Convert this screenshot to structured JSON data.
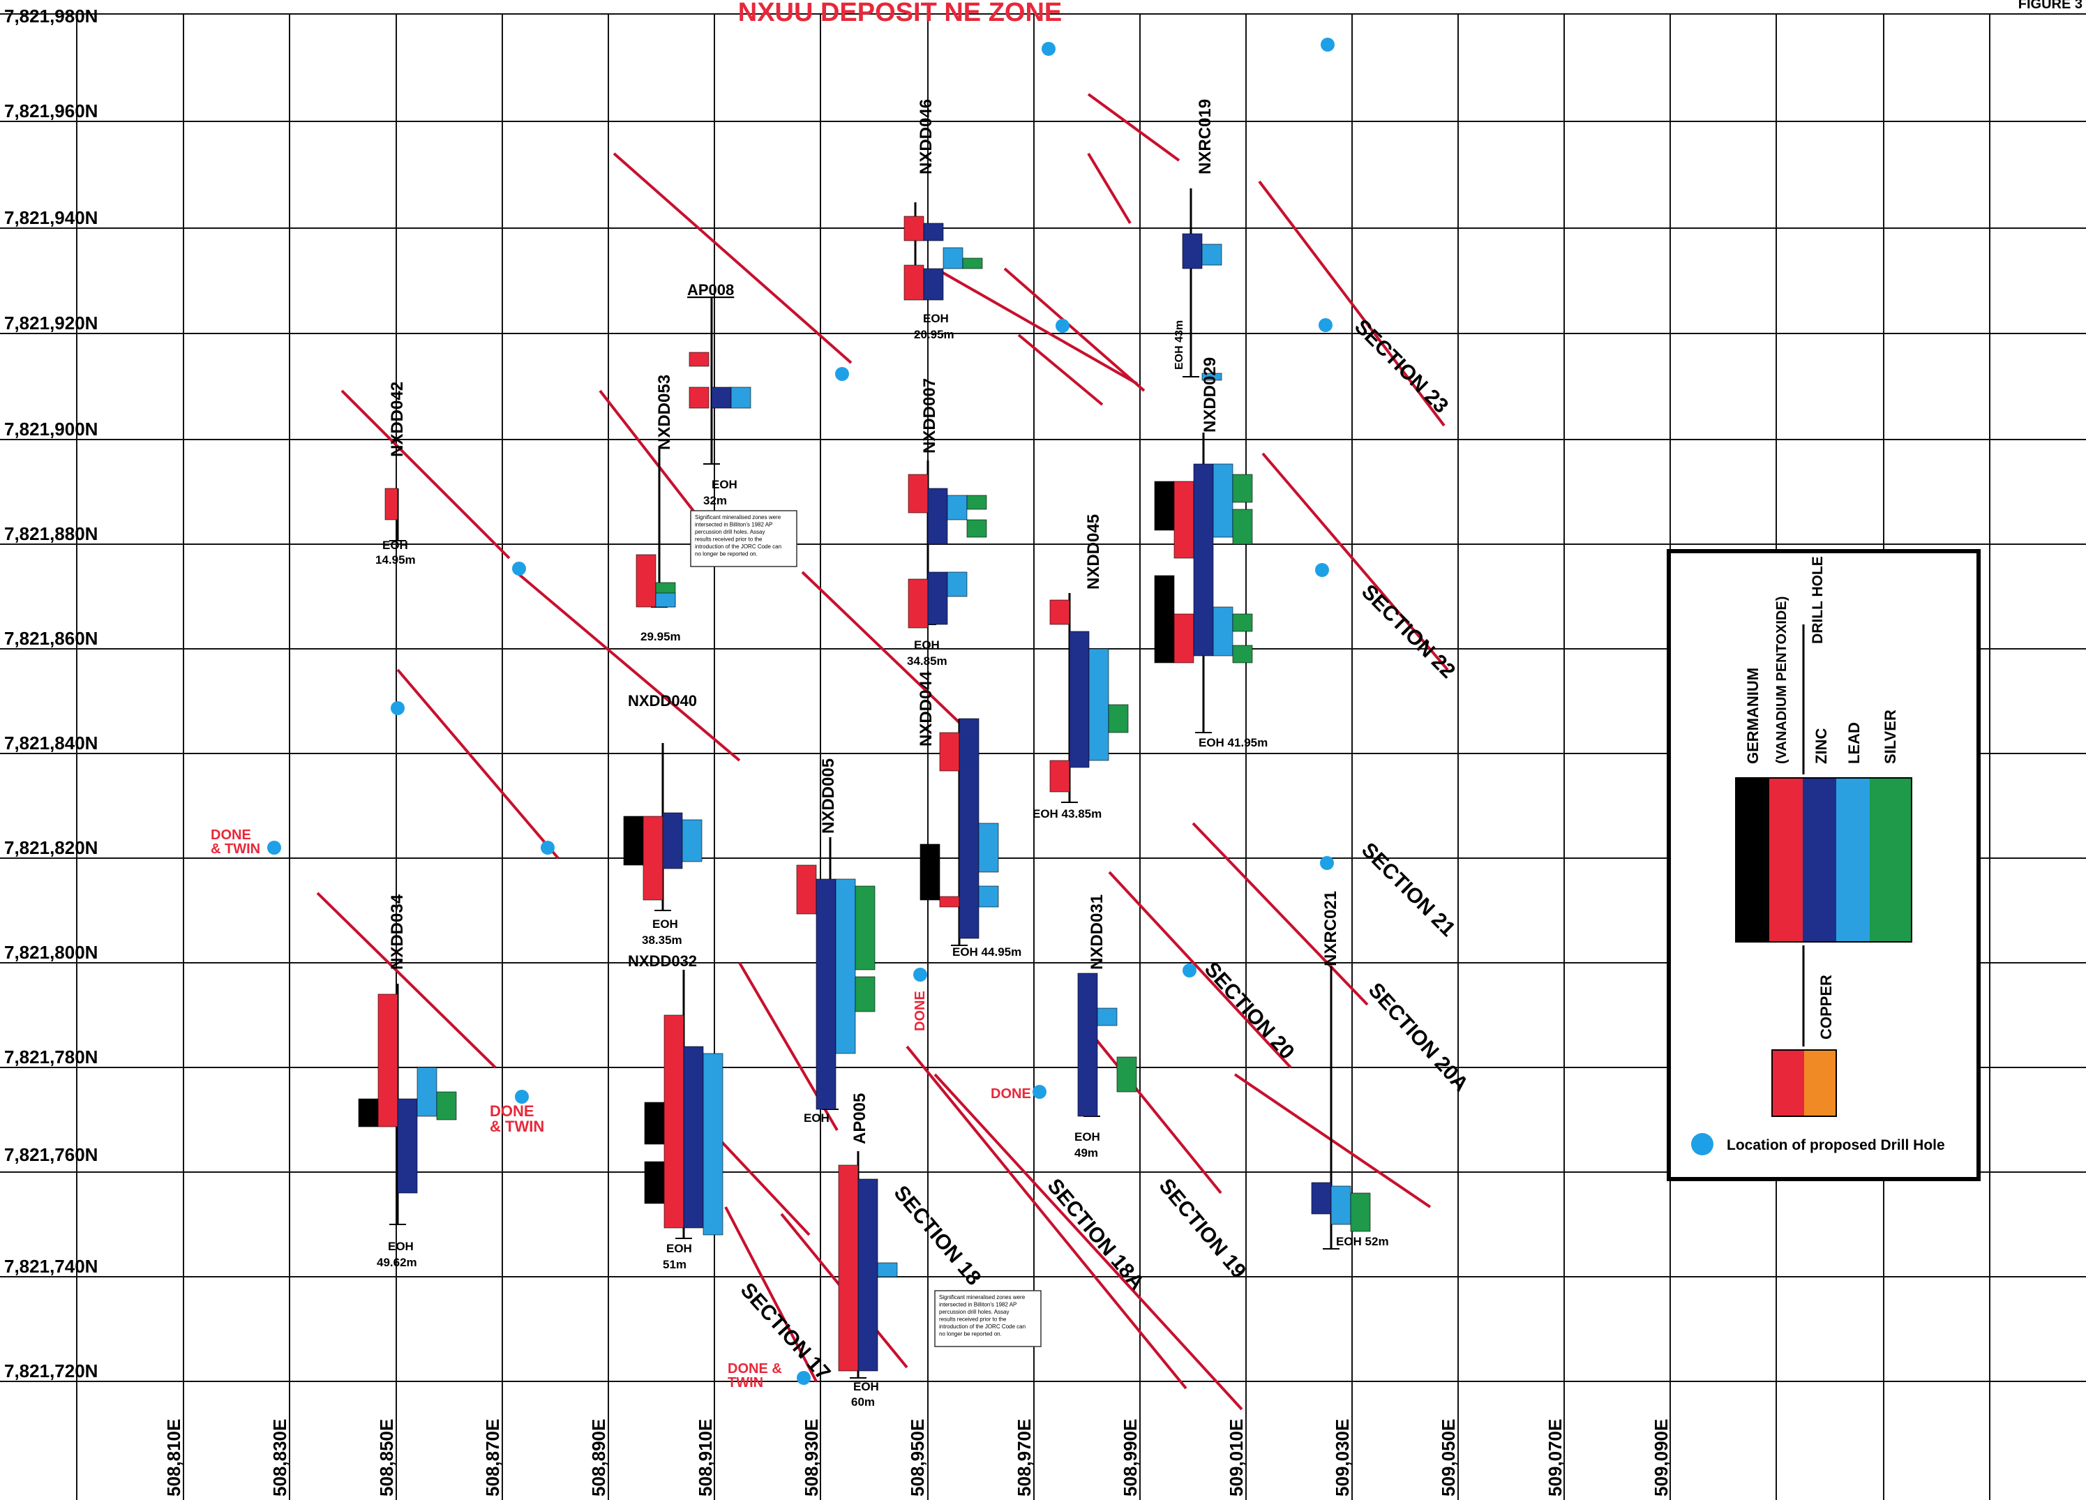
{
  "header": {
    "title": "NXUU DEPOSIT NE ZONE",
    "figure": "FIGURE 3"
  },
  "axes": {
    "northing": [
      "7,821,980N",
      "7,821,960N",
      "7,821,940N",
      "7,821,920N",
      "7,821,900N",
      "7,821,880N",
      "7,821,860N",
      "7,821,840N",
      "7,821,820N",
      "7,821,800N",
      "7,821,780N",
      "7,821,760N",
      "7,821,740N",
      "7,821,720N"
    ],
    "easting": [
      "508,810E",
      "508,830E",
      "508,850E",
      "508,870E",
      "508,890E",
      "508,910E",
      "508,930E",
      "508,950E",
      "508,970E",
      "508,990E",
      "509,010E",
      "509,030E",
      "509,050E",
      "509,070E",
      "509,090E"
    ]
  },
  "sections": [
    "SECTION 23",
    "SECTION 22",
    "SECTION 21",
    "SECTION 20",
    "SECTION 20A",
    "SECTION 19",
    "SECTION 18A",
    "SECTION 18",
    "SECTION 17"
  ],
  "holes": [
    {
      "name": "NXDD046",
      "eoh": "EOH",
      "depth": "20.95m"
    },
    {
      "name": "NXRC019",
      "eoh": "EOH 43m"
    },
    {
      "name": "AP008",
      "eoh": "EOH",
      "depth": "32m"
    },
    {
      "name": "NXDD042",
      "eoh": "EOH",
      "depth": "14.95m"
    },
    {
      "name": "NXDD053",
      "eoh": "",
      "depth": "29.95m"
    },
    {
      "name": "NXDD007",
      "eoh": "EOH",
      "depth": "34.85m"
    },
    {
      "name": "NXDD045",
      "eoh": "EOH 43.85m"
    },
    {
      "name": "NXDD029",
      "eoh": "EOH 41.95m"
    },
    {
      "name": "NXDD040",
      "eoh": "EOH",
      "depth": "38.35m"
    },
    {
      "name": "NXDD044",
      "eoh": "EOH 44.95m"
    },
    {
      "name": "NXDD005",
      "eoh": "EOH"
    },
    {
      "name": "NXDD031",
      "eoh": "EOH",
      "depth": "49m"
    },
    {
      "name": "NXRC021",
      "eoh": "EOH 52m"
    },
    {
      "name": "NXDD034",
      "eoh": "EOH",
      "depth": "49.62m"
    },
    {
      "name": "NXDD032",
      "eoh": "EOH",
      "depth": "51m"
    },
    {
      "name": "AP005",
      "eoh": "EOH",
      "depth": "60m"
    }
  ],
  "annotations": {
    "done_twin": "DONE & TWIN",
    "done": "DONE",
    "note": "Significant mineralised zones were intersected in Billiton's 1982 AP percussion drill holes. Assay results received prior to the introduction of the JORC Code can no longer be reported on."
  },
  "legend": {
    "drill_hole": "DRILL HOLE",
    "germanium": "GERMANIUM",
    "vanadium": "(VANADIUM PENTOXIDE)",
    "zinc": "ZINC",
    "lead": "LEAD",
    "silver": "SILVER",
    "copper": "COPPER",
    "proposed": "Location of proposed Drill Hole",
    "colors": {
      "germanium": "#000000",
      "vanadium": "#e8283a",
      "zinc": "#1f2f8c",
      "lead": "#2aa0e0",
      "silver": "#1e9a4a",
      "copper": "#f08a24",
      "proposed": "#1ea0e6",
      "section": "#c8102e"
    }
  }
}
